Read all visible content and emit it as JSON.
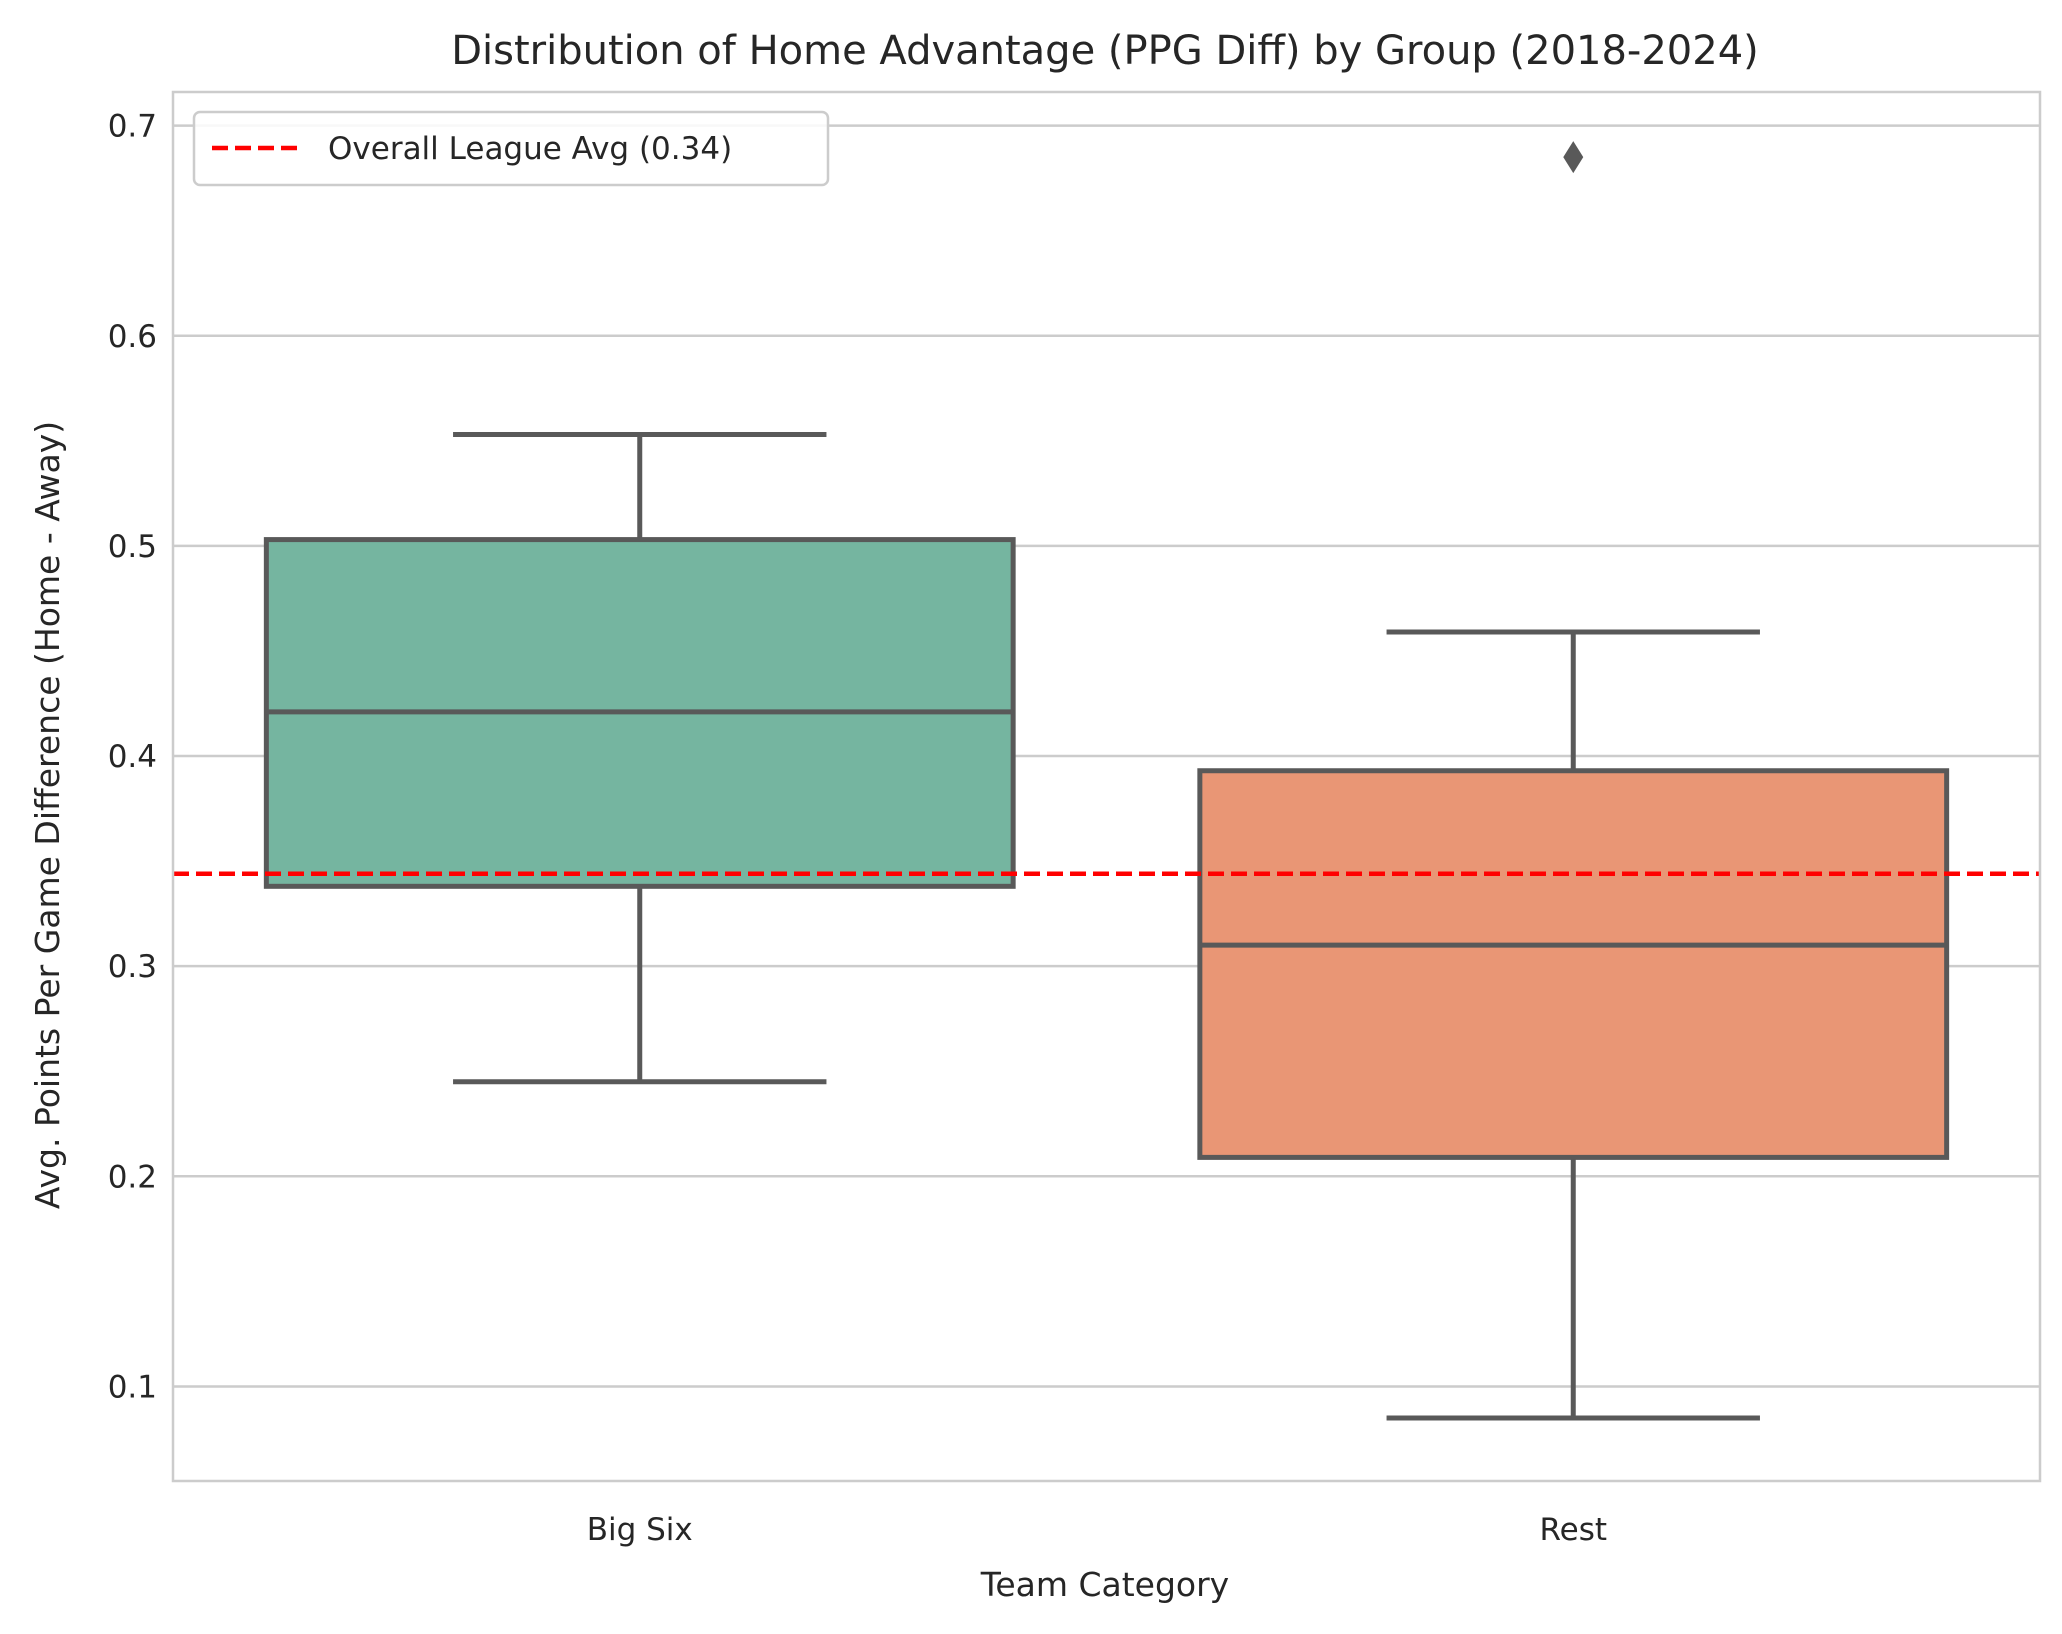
{
  "chart_data": {
    "type": "box",
    "title": "Distribution of Home Advantage (PPG Diff) by Group (2018-2024)",
    "xlabel": "Team Category",
    "ylabel": "Avg. Points Per Game Difference (Home - Away)",
    "ylim": [
      0.055,
      0.716
    ],
    "yticks": [
      0.1,
      0.2,
      0.3,
      0.4,
      0.5,
      0.6,
      0.7
    ],
    "ytick_labels": [
      "0.1",
      "0.2",
      "0.3",
      "0.4",
      "0.5",
      "0.6",
      "0.7"
    ],
    "grid": true,
    "legend_position": "top-left",
    "categories": [
      "Big Six",
      "Rest"
    ],
    "boxes": [
      {
        "category": "Big Six",
        "whisker_low": 0.245,
        "q1": 0.338,
        "median": 0.421,
        "q3": 0.503,
        "whisker_high": 0.553,
        "outliers": [],
        "color": "#75b5a0"
      },
      {
        "category": "Rest",
        "whisker_low": 0.085,
        "q1": 0.209,
        "median": 0.31,
        "q3": 0.393,
        "whisker_high": 0.459,
        "outliers": [
          0.685
        ],
        "color": "#e99675"
      }
    ],
    "reference_line": {
      "label": "Overall League Avg (0.34)",
      "value": 0.344,
      "color": "#ff0000",
      "style": "dashed"
    },
    "box_edge_color": "#595959",
    "grid_color": "#cccccc"
  }
}
